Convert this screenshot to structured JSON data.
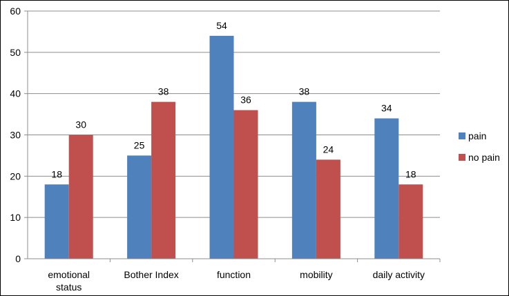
{
  "chart_data": {
    "type": "bar",
    "title": "",
    "xlabel": "",
    "ylabel": "",
    "ylim": [
      0,
      60
    ],
    "yticks": [
      "0",
      "10",
      "20",
      "30",
      "40",
      "50",
      "60"
    ],
    "categories": [
      "emotional status",
      "Bother Index",
      "function",
      "mobility",
      "daily activity"
    ],
    "series": [
      {
        "name": "pain",
        "color": "#4f81bd",
        "values": [
          18,
          25,
          54,
          38,
          34
        ]
      },
      {
        "name": "no pain",
        "color": "#c0504d",
        "values": [
          30,
          38,
          36,
          24,
          18
        ]
      }
    ],
    "grid": true,
    "legend": "right"
  }
}
